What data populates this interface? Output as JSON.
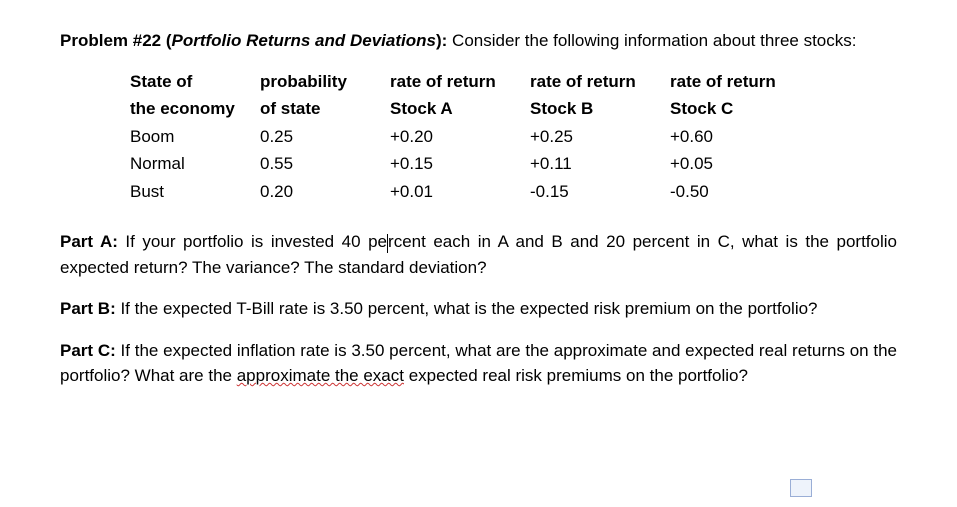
{
  "problem": {
    "number_label": "Problem #22",
    "topic_open": " (",
    "topic": "Portfolio Returns and Deviations",
    "topic_close": "):",
    "intro": " Consider the following information about three stocks:"
  },
  "table": {
    "headers": {
      "c0a": "State of",
      "c0b": "the economy",
      "c1a": "probability",
      "c1b": "of state",
      "c2a": "rate of return",
      "c2b": "Stock A",
      "c3a": "rate of return",
      "c3b": "Stock B",
      "c4a": "rate of return",
      "c4b": "Stock C"
    },
    "rows": [
      {
        "state": "Boom",
        "p": "0.25",
        "a": "+0.20",
        "b": "+0.25",
        "c": "+0.60"
      },
      {
        "state": "Normal",
        "p": "0.55",
        "a": "+0.15",
        "b": "+0.11",
        "c": "+0.05"
      },
      {
        "state": "Bust",
        "p": "0.20",
        "a": "+0.01",
        "b": "-0.15",
        "c": "-0.50"
      }
    ]
  },
  "partA": {
    "label": "Part A:",
    "pre": " If your portfolio is invested 40 pe",
    "post": "rcent each in A and B and 20 percent in C, what is the portfolio expected return? The variance? The standard deviation?"
  },
  "partB": {
    "label": "Part B:",
    "text": " If the expected T-Bill rate is 3.50 percent, what is the expected risk premium on the portfolio?"
  },
  "partC": {
    "label": "Part C:",
    "pre": " If the expected inflation rate is 3.50 percent, what are the approximate and expected real returns on the portfolio? What are the ",
    "squiggle": "approximate the exact",
    "post": " expected real risk premiums on the portfolio?"
  }
}
